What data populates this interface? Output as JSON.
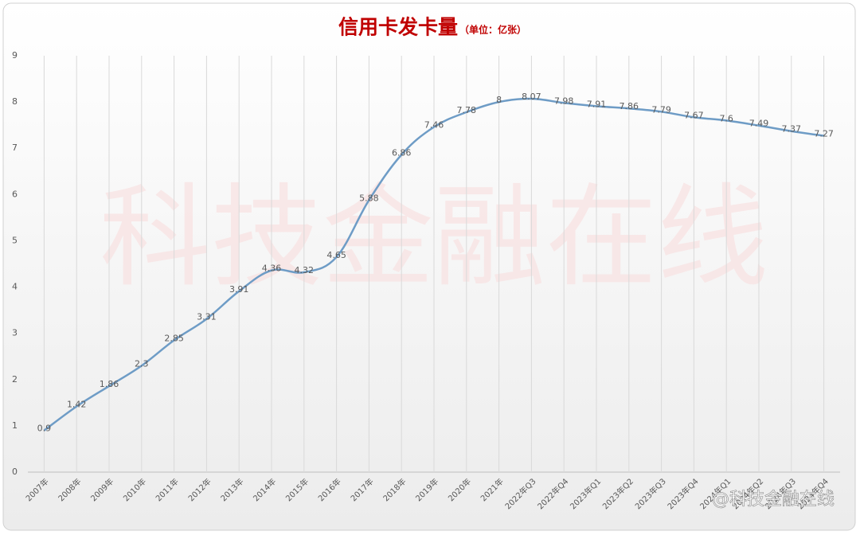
{
  "chart_data": {
    "type": "line",
    "title": "信用卡发卡量",
    "subtitle": "（单位：亿张）",
    "watermark": "科技金融在线",
    "credit": "@科技金融在线",
    "categories": [
      "2007年",
      "2008年",
      "2009年",
      "2010年",
      "2011年",
      "2012年",
      "2013年",
      "2014年",
      "2015年",
      "2016年",
      "2017年",
      "2018年",
      "2019年",
      "2020年",
      "2021年",
      "2022年Q3",
      "2022年Q4",
      "2023年Q1",
      "2023年Q2",
      "2023年Q3",
      "2023年Q4",
      "2024年Q1",
      "2024年Q2",
      "2024年Q3",
      "2024年Q4"
    ],
    "values": [
      0.9,
      1.42,
      1.86,
      2.3,
      2.85,
      3.31,
      3.91,
      4.36,
      4.32,
      4.65,
      5.88,
      6.86,
      7.46,
      7.78,
      8,
      8.07,
      7.98,
      7.91,
      7.86,
      7.79,
      7.67,
      7.6,
      7.49,
      7.37,
      7.27
    ],
    "color": "#6e9cc6",
    "ylim": [
      0,
      9
    ],
    "yticks": [
      0,
      1,
      2,
      3,
      4,
      5,
      6,
      7,
      8,
      9
    ],
    "grid": true
  }
}
